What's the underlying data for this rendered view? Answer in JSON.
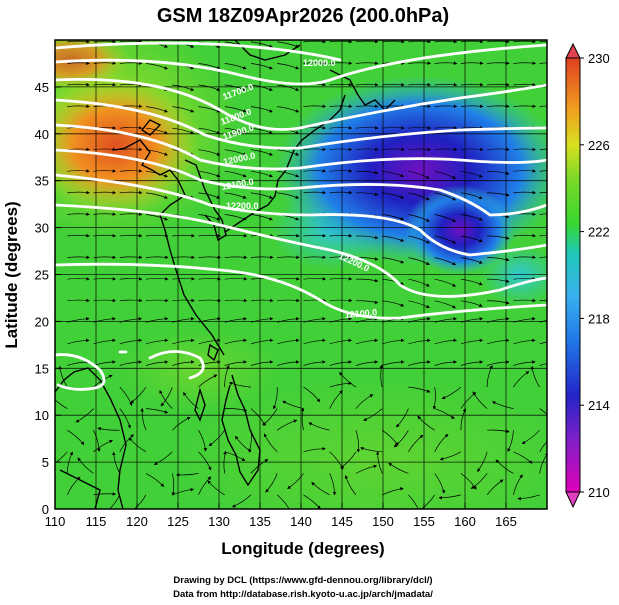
{
  "chart_data": {
    "type": "heatmap",
    "title": "GSM 18Z09Apr2026 (200.0hPa)",
    "xlabel": "Longitude (degrees)",
    "ylabel": "Latitude  (degrees)",
    "xlim": [
      110,
      170
    ],
    "ylim": [
      0,
      50
    ],
    "xticks": [
      110,
      115,
      120,
      125,
      130,
      135,
      140,
      145,
      150,
      155,
      160,
      165
    ],
    "yticks": [
      0,
      5,
      10,
      15,
      20,
      25,
      30,
      35,
      40,
      45
    ],
    "colorbar": {
      "min": 210,
      "max": 230,
      "ticks": [
        210,
        214,
        218,
        222,
        226,
        230
      ],
      "colors": [
        "#e000b8",
        "#2424c8",
        "#3ab0f0",
        "#20c8b8",
        "#38d830",
        "#aee020",
        "#f0a020",
        "#e04020"
      ]
    },
    "contour_labels": [
      "12000.0",
      "11700.0",
      "11800.0",
      "11900.0",
      "12000.0",
      "12100.0",
      "12200.0",
      "12200.0",
      "12100.0",
      "12400.0"
    ],
    "field_samples": [
      {
        "lon": 117,
        "lat": 40,
        "value": 228
      },
      {
        "lon": 152,
        "lat": 37,
        "value": 213
      },
      {
        "lon": 155,
        "lat": 32,
        "value": 211
      },
      {
        "lon": 135,
        "lat": 20,
        "value": 223
      },
      {
        "lon": 150,
        "lat": 8,
        "value": 222
      },
      {
        "lon": 145,
        "lat": 28,
        "value": 219
      }
    ]
  },
  "credits": {
    "line1": "Drawing by DCL (https://www.gfd-dennou.org/library/dcl/)",
    "line2": "Data from http://database.rish.kyoto-u.ac.jp/arch/jmadata/"
  }
}
